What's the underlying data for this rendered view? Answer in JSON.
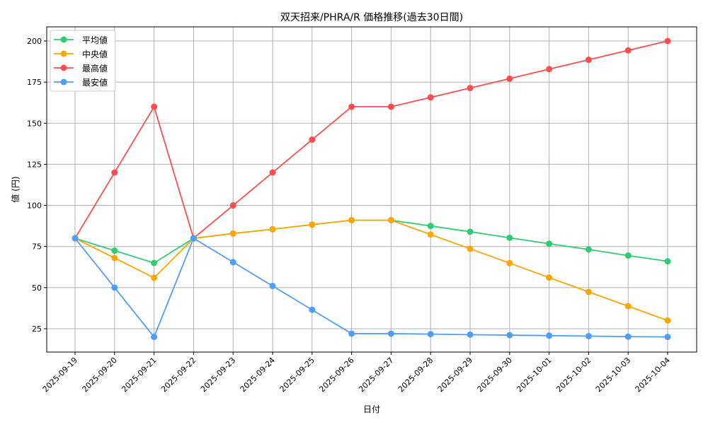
{
  "chart_data": {
    "type": "line",
    "title": "双天招来/PHRA/R 価格推移(過去30日間)",
    "xlabel": "日付",
    "ylabel": "値 (円)",
    "ylim": [
      10.8,
      208.6
    ],
    "yticks": [
      25,
      50,
      75,
      100,
      125,
      150,
      175,
      200
    ],
    "grid": true,
    "legend_position": "top-left",
    "categories": [
      "2025-09-19",
      "2025-09-20",
      "2025-09-21",
      "2025-09-22",
      "2025-09-23",
      "2025-09-24",
      "2025-09-25",
      "2025-09-26",
      "2025-09-27",
      "2025-09-28",
      "2025-09-29",
      "2025-09-30",
      "2025-10-01",
      "2025-10-02",
      "2025-10-03",
      "2025-10-04"
    ],
    "series": [
      {
        "name": "平均値",
        "color": "#2ecc71",
        "values": [
          80,
          72.5,
          65,
          80,
          82.9,
          85.5,
          88.3,
          91,
          91,
          87.5,
          84,
          80.3,
          76.7,
          73.2,
          69.5,
          66
        ]
      },
      {
        "name": "中央値",
        "color": "#ffa500",
        "values": [
          80,
          68,
          56,
          80,
          82.9,
          85.5,
          88.3,
          91,
          91,
          82.3,
          73.6,
          64.9,
          56.1,
          47.4,
          38.7,
          30
        ]
      },
      {
        "name": "最高値",
        "color": "#ff4d4d",
        "values": [
          80,
          120,
          160,
          80,
          100,
          120,
          140,
          160,
          160,
          165.7,
          171.4,
          177.1,
          182.9,
          188.6,
          194.3,
          200
        ]
      },
      {
        "name": "最安値",
        "color": "#4d9eff",
        "values": [
          80,
          50,
          20,
          80,
          65.5,
          51,
          36.5,
          22,
          22,
          21.7,
          21.4,
          21.1,
          20.8,
          20.5,
          20.2,
          20
        ]
      }
    ]
  }
}
